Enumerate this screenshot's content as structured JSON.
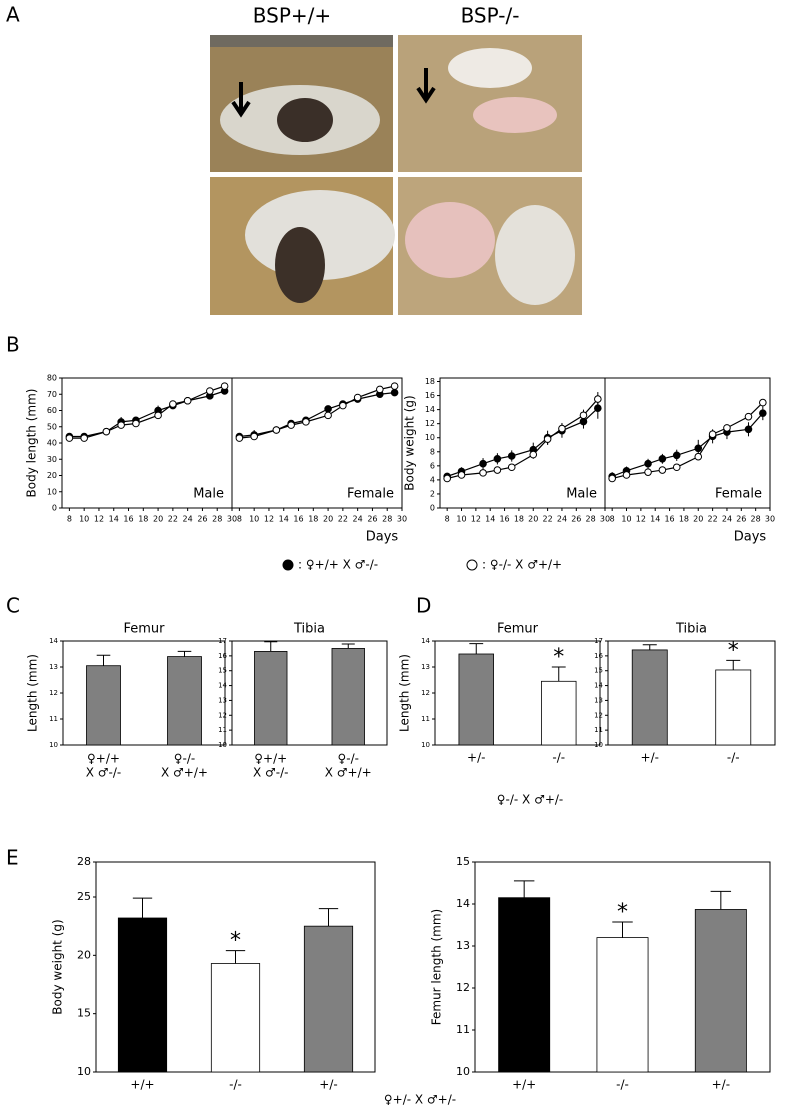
{
  "figure": {
    "panel_labels": [
      "A",
      "B",
      "C",
      "D",
      "E"
    ],
    "genotypes": [
      "BSP+/+",
      "BSP-/-"
    ],
    "legend": [
      {
        "fill": "#000000",
        "label": ": ♀+/+ X ♂-/-"
      },
      {
        "fill": "#ffffff",
        "label": ": ♀-/- X ♂+/+"
      }
    ],
    "cross_d": "♀-/- X ♂+/-",
    "cross_e": "♀+/- X ♂+/-"
  },
  "chart_data": [
    {
      "type": "line",
      "ylabel": "Body length (mm)",
      "xlabel": "Days",
      "xlim": [
        7,
        30
      ],
      "xticks": [
        8,
        10,
        12,
        14,
        16,
        18,
        20,
        22,
        24,
        26,
        28,
        30
      ],
      "ylim": [
        0,
        80
      ],
      "yticks": [
        0,
        10,
        20,
        30,
        40,
        50,
        60,
        70,
        80
      ],
      "panels": [
        {
          "label": "Male",
          "x": [
            8,
            10,
            13,
            15,
            17,
            20,
            22,
            24,
            27,
            29
          ],
          "series": [
            {
              "fill": "#000000",
              "values": [
                44,
                44,
                47,
                53,
                54,
                60,
                63,
                66,
                69,
                72
              ],
              "errors": [
                2,
                2,
                1,
                3,
                2,
                3,
                2,
                2,
                2,
                2
              ]
            },
            {
              "fill": "#ffffff",
              "values": [
                43,
                43,
                47,
                51,
                52,
                57,
                64,
                66,
                72,
                75
              ],
              "errors": [
                2,
                2,
                1,
                2,
                2,
                2,
                2,
                2,
                2,
                2
              ]
            }
          ]
        },
        {
          "label": "Female",
          "x": [
            8,
            10,
            13,
            15,
            17,
            20,
            22,
            24,
            27,
            29
          ],
          "series": [
            {
              "fill": "#000000",
              "values": [
                44,
                45,
                48,
                52,
                54,
                61,
                64,
                67,
                70,
                71
              ],
              "errors": [
                2,
                3,
                1,
                2,
                2,
                2,
                2,
                2,
                2,
                2
              ]
            },
            {
              "fill": "#ffffff",
              "values": [
                43,
                44,
                48,
                51,
                53,
                57,
                63,
                68,
                73,
                75
              ],
              "errors": [
                2,
                2,
                1,
                2,
                2,
                2,
                2,
                2,
                2,
                1
              ]
            }
          ]
        }
      ]
    },
    {
      "type": "line",
      "ylabel": "Body weight (g)",
      "xlabel": "Days",
      "xlim": [
        7,
        30
      ],
      "xticks": [
        8,
        10,
        12,
        14,
        16,
        18,
        20,
        22,
        24,
        26,
        28,
        30
      ],
      "ylim": [
        0,
        18.5
      ],
      "yticks": [
        0,
        2,
        4,
        6,
        8,
        10,
        12,
        14,
        16,
        18
      ],
      "panels": [
        {
          "label": "Male",
          "x": [
            8,
            10,
            13,
            15,
            17,
            20,
            22,
            24,
            27,
            29
          ],
          "series": [
            {
              "fill": "#000000",
              "values": [
                4.5,
                5.2,
                6.3,
                7,
                7.4,
                8.3,
                10,
                11,
                12.3,
                14.2
              ],
              "errors": [
                0.5,
                0.6,
                0.8,
                0.8,
                0.8,
                1,
                1,
                1,
                1,
                1.5
              ]
            },
            {
              "fill": "#ffffff",
              "values": [
                4.2,
                4.7,
                5,
                5.4,
                5.8,
                7.6,
                9.8,
                11.3,
                13.2,
                15.5
              ],
              "errors": [
                0.4,
                0.4,
                0.4,
                0.4,
                0.4,
                0.6,
                0.8,
                0.8,
                0.8,
                1
              ]
            }
          ]
        },
        {
          "label": "Female",
          "x": [
            8,
            10,
            13,
            15,
            17,
            20,
            22,
            24,
            27,
            29
          ],
          "series": [
            {
              "fill": "#000000",
              "values": [
                4.5,
                5.3,
                6.3,
                7,
                7.5,
                8.5,
                10.2,
                10.8,
                11.2,
                13.5
              ],
              "errors": [
                0.6,
                0.6,
                0.7,
                0.7,
                0.8,
                1.2,
                1,
                1,
                1,
                1
              ]
            },
            {
              "fill": "#ffffff",
              "values": [
                4.2,
                4.7,
                5.1,
                5.4,
                5.8,
                7.3,
                10.5,
                11.4,
                13,
                15
              ],
              "errors": [
                0.4,
                0.4,
                0.4,
                0.4,
                0.4,
                0.5,
                0.6,
                0.5,
                0.5,
                0.5
              ]
            }
          ]
        }
      ]
    },
    {
      "type": "bar",
      "title": "Femur",
      "ylabel": "Length (mm)",
      "categories": [
        [
          "♀+/+",
          "X ♂-/-"
        ],
        [
          "♀-/-",
          "X ♂+/+"
        ]
      ],
      "values": [
        13.05,
        13.4
      ],
      "errors": [
        0.4,
        0.2
      ],
      "colors": [
        "#808080",
        "#808080"
      ],
      "ylim": [
        10,
        14
      ],
      "yticks": [
        10,
        11,
        12,
        13,
        14
      ]
    },
    {
      "type": "bar",
      "title": "Tibia",
      "categories": [
        [
          "♀+/+",
          "X ♂-/-"
        ],
        [
          "♀-/-",
          "X ♂+/+"
        ]
      ],
      "values": [
        16.3,
        16.5
      ],
      "errors": [
        0.65,
        0.3
      ],
      "colors": [
        "#808080",
        "#808080"
      ],
      "ylim": [
        10,
        17
      ],
      "yticks": [
        10,
        11,
        12,
        13,
        14,
        15,
        16,
        17
      ]
    },
    {
      "type": "bar",
      "title": "Femur",
      "ylabel": "Length (mm)",
      "categories": [
        "+/-",
        "-/-"
      ],
      "values": [
        13.5,
        12.45
      ],
      "errors": [
        0.4,
        0.55
      ],
      "colors": [
        "#808080",
        "#ffffff"
      ],
      "ylim": [
        10,
        14
      ],
      "yticks": [
        10,
        11,
        12,
        13,
        14
      ],
      "annotations": [
        {
          "text": "*",
          "at": "-/-"
        }
      ]
    },
    {
      "type": "bar",
      "title": "Tibia",
      "categories": [
        "+/-",
        "-/-"
      ],
      "values": [
        16.4,
        15.05
      ],
      "errors": [
        0.35,
        0.65
      ],
      "colors": [
        "#808080",
        "#ffffff"
      ],
      "ylim": [
        10,
        17
      ],
      "yticks": [
        10,
        11,
        12,
        13,
        14,
        15,
        16,
        17
      ],
      "annotations": [
        {
          "text": "*",
          "at": "-/-"
        }
      ]
    },
    {
      "type": "bar",
      "ylabel": "Body weight (g)",
      "categories": [
        "+/+",
        "-/-",
        "+/-"
      ],
      "values": [
        23.2,
        19.3,
        22.5
      ],
      "errors": [
        1.7,
        1.1,
        1.5
      ],
      "colors": [
        "#000000",
        "#ffffff",
        "#808080"
      ],
      "ylim": [
        10,
        28
      ],
      "yticks": [
        10,
        15,
        20,
        25,
        28
      ],
      "annotations": [
        {
          "text": "*",
          "at": "-/-"
        }
      ]
    },
    {
      "type": "bar",
      "ylabel": "Femur length (mm)",
      "categories": [
        "+/+",
        "-/-",
        "+/-"
      ],
      "values": [
        14.15,
        13.2,
        13.87
      ],
      "errors": [
        0.4,
        0.37,
        0.43
      ],
      "colors": [
        "#000000",
        "#ffffff",
        "#808080"
      ],
      "ylim": [
        10,
        15
      ],
      "yticks": [
        10,
        11,
        12,
        13,
        14,
        15
      ],
      "annotations": [
        {
          "text": "*",
          "at": "-/-"
        }
      ]
    }
  ]
}
